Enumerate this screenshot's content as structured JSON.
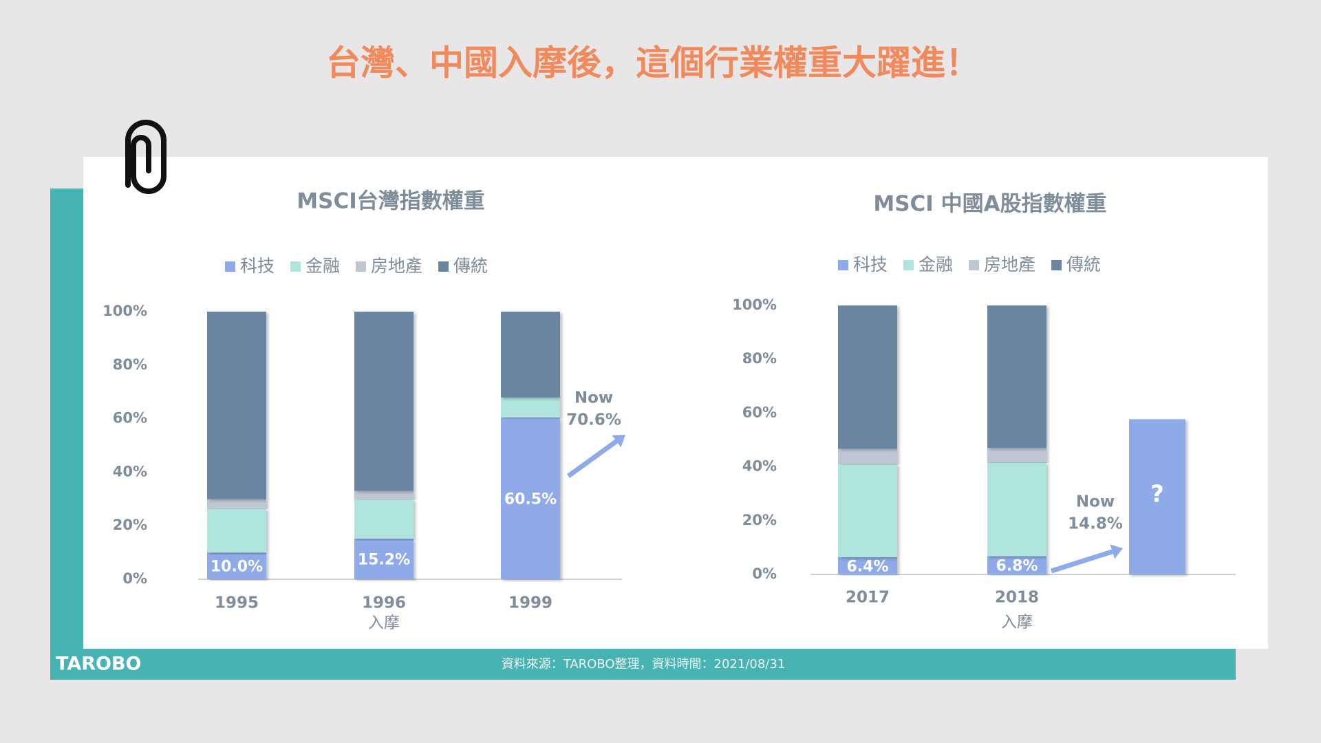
{
  "title": "台灣、中國入摩後，這個行業權重大躍進！",
  "source": "資料來源：TAROBO整理，資料時間：2021/08/31",
  "logo": "TAROBO",
  "chart_data": [
    {
      "type": "stacked-bar",
      "title": "MSCI台灣指數權重",
      "categories": [
        "1995",
        "1996",
        "1999"
      ],
      "sublabels": [
        null,
        "入摩",
        null
      ],
      "series": [
        {
          "name": "科技",
          "color": "#8eaae8",
          "values": [
            10.0,
            15.2,
            60.5
          ],
          "value_labels": [
            "10.0%",
            "15.2%",
            "60.5%"
          ]
        },
        {
          "name": "金融",
          "color": "#b0e5de",
          "values": [
            16.4,
            14.7,
            7.4
          ]
        },
        {
          "name": "房地產",
          "color": "#bfc7d5",
          "values": [
            3.5,
            3.1,
            0
          ]
        },
        {
          "name": "傳統",
          "color": "#6a86a3",
          "values": [
            70.1,
            67.0,
            32.1
          ]
        }
      ],
      "ylim": [
        0,
        100
      ],
      "yticks": [
        {
          "value": 0,
          "label": "0%"
        },
        {
          "value": 20,
          "label": "20%"
        },
        {
          "value": 40,
          "label": "40%"
        },
        {
          "value": 60,
          "label": "60%"
        },
        {
          "value": 80,
          "label": "80%"
        },
        {
          "value": 100,
          "label": "100%"
        }
      ],
      "grid": false,
      "legend": "top",
      "annotation": [
        "Now",
        "70.6%"
      ]
    },
    {
      "type": "stacked-bar",
      "title": "MSCI 中國A股指數權重",
      "categories": [
        "2017",
        "2018"
      ],
      "sublabels": [
        null,
        "入摩"
      ],
      "series": [
        {
          "name": "科技",
          "color": "#8eaae8",
          "values": [
            6.4,
            6.8
          ],
          "value_labels": [
            "6.4%",
            "6.8%"
          ]
        },
        {
          "name": "金融",
          "color": "#b0e5de",
          "values": [
            34.7,
            34.9
          ]
        },
        {
          "name": "房地產",
          "color": "#bfc7d5",
          "values": [
            5.6,
            5.3
          ]
        },
        {
          "name": "傳統",
          "color": "#6a86a3",
          "values": [
            53.3,
            53.0
          ]
        }
      ],
      "projection": {
        "label": "?",
        "value": 57.7
      },
      "ylim": [
        0,
        100
      ],
      "yticks": [
        {
          "value": 0,
          "label": "0%"
        },
        {
          "value": 20,
          "label": "20%"
        },
        {
          "value": 40,
          "label": "40%"
        },
        {
          "value": 60,
          "label": "60%"
        },
        {
          "value": 80,
          "label": "80%"
        },
        {
          "value": 100,
          "label": "100%"
        }
      ],
      "grid": false,
      "legend": "top",
      "annotation": [
        "Now",
        "14.8%"
      ]
    }
  ]
}
